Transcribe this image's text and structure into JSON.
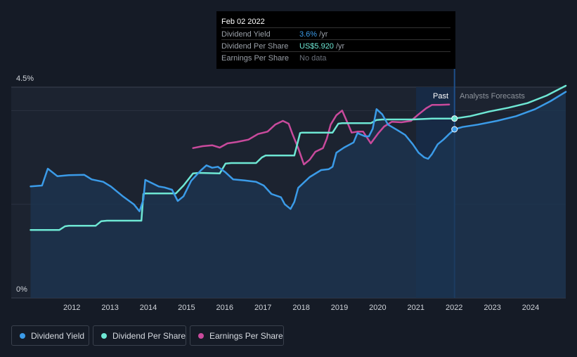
{
  "tooltip": {
    "date": "Feb 02 2022",
    "rows": [
      {
        "label": "Dividend Yield",
        "value": "3.6%",
        "unit": " /yr",
        "color": "#3b9be8"
      },
      {
        "label": "Dividend Per Share",
        "value": "US$5.920",
        "unit": " /yr",
        "color": "#6ee7d4"
      },
      {
        "label": "Earnings Per Share",
        "value": "No data",
        "unit": "",
        "color": "#6b717b"
      }
    ]
  },
  "regions": {
    "past": "Past",
    "forecast": "Analysts Forecasts"
  },
  "legend": [
    {
      "label": "Dividend Yield",
      "color": "#3b9be8"
    },
    {
      "label": "Dividend Per Share",
      "color": "#6ee7d4"
    },
    {
      "label": "Earnings Per Share",
      "color": "#c94a9c"
    }
  ],
  "chart_data": {
    "type": "line",
    "y_labels": [
      "4.5%",
      "0%"
    ],
    "ylim": [
      0,
      4.5
    ],
    "x_ticks": [
      "2012",
      "2013",
      "2014",
      "2015",
      "2016",
      "2017",
      "2018",
      "2019",
      "2020",
      "2021",
      "2022",
      "2023",
      "2024"
    ],
    "xlim": [
      2011.0,
      2025.0
    ],
    "cursor_x": 2022.09,
    "series": [
      {
        "name": "Dividend Yield",
        "color": "#3b9be8",
        "points": [
          [
            2011.0,
            2.38
          ],
          [
            2011.3,
            2.4
          ],
          [
            2011.45,
            2.76
          ],
          [
            2011.7,
            2.6
          ],
          [
            2012.0,
            2.62
          ],
          [
            2012.4,
            2.63
          ],
          [
            2012.6,
            2.53
          ],
          [
            2012.9,
            2.48
          ],
          [
            2013.1,
            2.38
          ],
          [
            2013.4,
            2.18
          ],
          [
            2013.7,
            2.0
          ],
          [
            2013.85,
            1.85
          ],
          [
            2013.95,
            2.1
          ],
          [
            2014.0,
            2.52
          ],
          [
            2014.2,
            2.44
          ],
          [
            2014.35,
            2.38
          ],
          [
            2014.5,
            2.36
          ],
          [
            2014.7,
            2.31
          ],
          [
            2014.85,
            2.07
          ],
          [
            2015.0,
            2.17
          ],
          [
            2015.2,
            2.5
          ],
          [
            2015.45,
            2.72
          ],
          [
            2015.6,
            2.83
          ],
          [
            2015.75,
            2.78
          ],
          [
            2015.9,
            2.8
          ],
          [
            2016.1,
            2.68
          ],
          [
            2016.3,
            2.53
          ],
          [
            2016.6,
            2.51
          ],
          [
            2016.9,
            2.48
          ],
          [
            2017.1,
            2.4
          ],
          [
            2017.3,
            2.22
          ],
          [
            2017.55,
            2.15
          ],
          [
            2017.65,
            2.0
          ],
          [
            2017.8,
            1.9
          ],
          [
            2017.9,
            2.05
          ],
          [
            2018.0,
            2.35
          ],
          [
            2018.3,
            2.58
          ],
          [
            2018.6,
            2.73
          ],
          [
            2018.8,
            2.75
          ],
          [
            2018.9,
            2.8
          ],
          [
            2019.0,
            3.1
          ],
          [
            2019.2,
            3.21
          ],
          [
            2019.45,
            3.32
          ],
          [
            2019.55,
            3.52
          ],
          [
            2019.75,
            3.45
          ],
          [
            2019.85,
            3.45
          ],
          [
            2019.95,
            3.61
          ],
          [
            2020.05,
            4.03
          ],
          [
            2020.2,
            3.92
          ],
          [
            2020.35,
            3.7
          ],
          [
            2020.6,
            3.58
          ],
          [
            2020.8,
            3.48
          ],
          [
            2021.0,
            3.28
          ],
          [
            2021.15,
            3.1
          ],
          [
            2021.3,
            3.0
          ],
          [
            2021.4,
            2.97
          ],
          [
            2021.5,
            3.07
          ],
          [
            2021.65,
            3.28
          ],
          [
            2021.8,
            3.38
          ],
          [
            2021.95,
            3.5
          ],
          [
            2022.09,
            3.6
          ],
          [
            2022.3,
            3.65
          ],
          [
            2022.7,
            3.7
          ],
          [
            2023.2,
            3.78
          ],
          [
            2023.7,
            3.88
          ],
          [
            2024.2,
            4.03
          ],
          [
            2024.6,
            4.2
          ],
          [
            2025.0,
            4.4
          ]
        ]
      },
      {
        "name": "Dividend Per Share",
        "color": "#6ee7d4",
        "points": [
          [
            2011.0,
            1.45
          ],
          [
            2011.75,
            1.45
          ],
          [
            2011.9,
            1.53
          ],
          [
            2012.0,
            1.54
          ],
          [
            2012.7,
            1.54
          ],
          [
            2012.85,
            1.64
          ],
          [
            2013.0,
            1.65
          ],
          [
            2013.8,
            1.65
          ],
          [
            2013.9,
            1.65
          ],
          [
            2013.95,
            2.22
          ],
          [
            2014.0,
            2.23
          ],
          [
            2014.8,
            2.23
          ],
          [
            2015.0,
            2.4
          ],
          [
            2015.25,
            2.66
          ],
          [
            2015.4,
            2.67
          ],
          [
            2015.95,
            2.66
          ],
          [
            2016.1,
            2.87
          ],
          [
            2016.25,
            2.88
          ],
          [
            2016.9,
            2.88
          ],
          [
            2017.05,
            3.0
          ],
          [
            2017.15,
            3.04
          ],
          [
            2017.9,
            3.04
          ],
          [
            2018.05,
            3.52
          ],
          [
            2018.1,
            3.53
          ],
          [
            2018.9,
            3.53
          ],
          [
            2019.05,
            3.72
          ],
          [
            2019.15,
            3.73
          ],
          [
            2019.9,
            3.73
          ],
          [
            2020.05,
            3.8
          ],
          [
            2020.2,
            3.81
          ],
          [
            2021.0,
            3.81
          ],
          [
            2021.5,
            3.83
          ],
          [
            2022.09,
            3.83
          ],
          [
            2022.5,
            3.88
          ],
          [
            2023.0,
            3.98
          ],
          [
            2023.5,
            4.06
          ],
          [
            2024.0,
            4.16
          ],
          [
            2024.5,
            4.32
          ],
          [
            2025.0,
            4.53
          ]
        ]
      },
      {
        "name": "Earnings Per Share",
        "color": "#c94a9c",
        "points": [
          [
            2015.25,
            3.2
          ],
          [
            2015.5,
            3.24
          ],
          [
            2015.75,
            3.26
          ],
          [
            2015.95,
            3.21
          ],
          [
            2016.15,
            3.3
          ],
          [
            2016.4,
            3.33
          ],
          [
            2016.7,
            3.38
          ],
          [
            2016.95,
            3.5
          ],
          [
            2017.2,
            3.55
          ],
          [
            2017.4,
            3.7
          ],
          [
            2017.6,
            3.78
          ],
          [
            2017.75,
            3.72
          ],
          [
            2017.85,
            3.5
          ],
          [
            2018.0,
            3.2
          ],
          [
            2018.15,
            2.85
          ],
          [
            2018.3,
            2.95
          ],
          [
            2018.45,
            3.12
          ],
          [
            2018.65,
            3.2
          ],
          [
            2018.75,
            3.4
          ],
          [
            2018.85,
            3.7
          ],
          [
            2019.0,
            3.9
          ],
          [
            2019.15,
            4.0
          ],
          [
            2019.3,
            3.72
          ],
          [
            2019.4,
            3.53
          ],
          [
            2019.55,
            3.55
          ],
          [
            2019.7,
            3.55
          ],
          [
            2019.9,
            3.3
          ],
          [
            2020.1,
            3.52
          ],
          [
            2020.25,
            3.66
          ],
          [
            2020.45,
            3.76
          ],
          [
            2020.7,
            3.75
          ],
          [
            2020.95,
            3.78
          ],
          [
            2021.15,
            3.92
          ],
          [
            2021.35,
            4.05
          ],
          [
            2021.5,
            4.12
          ],
          [
            2021.7,
            4.12
          ],
          [
            2021.95,
            4.13
          ]
        ]
      }
    ]
  }
}
